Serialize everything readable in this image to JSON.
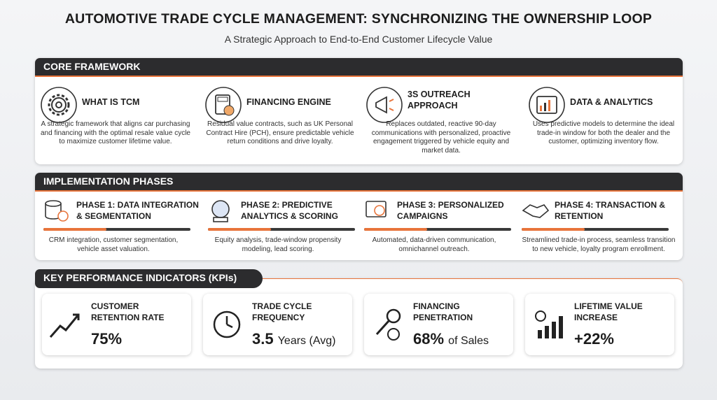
{
  "header": {
    "title": "AUTOMOTIVE TRADE CYCLE MANAGEMENT: SYNCHRONIZING THE OWNERSHIP LOOP",
    "subtitle": "A Strategic Approach to End-to-End Customer Lifecycle Value"
  },
  "core_framework": {
    "title": "CORE FRAMEWORK",
    "items": [
      {
        "title": "WHAT IS TCM",
        "text": "A strategic framework that aligns car purchasing and financing with the optimal resale value cycle to maximize customer lifetime value."
      },
      {
        "title": "FINANCING ENGINE",
        "text": "Residual value contracts, such as UK Personal Contract Hire (PCH), ensure predictable vehicle return conditions and drive loyalty."
      },
      {
        "title": "3S OUTREACH APPROACH",
        "text": "Replaces outdated, reactive 90-day communications with personalized, proactive engagement triggered by vehicle equity and market data."
      },
      {
        "title": "DATA & ANALYTICS",
        "text": "Uses predictive models to determine the ideal trade-in window for both the dealer and the customer, optimizing inventory flow."
      }
    ]
  },
  "implementation_phases": {
    "title": "IMPLEMENTATION PHASES",
    "phases": [
      {
        "title": "PHASE 1: DATA INTEGRATION & SEGMENTATION",
        "text": "CRM integration, customer segmentation, vehicle asset valuation."
      },
      {
        "title": "PHASE 2: PREDICTIVE ANALYTICS & SCORING",
        "text": "Equity analysis, trade-window propensity modeling, lead scoring."
      },
      {
        "title": "PHASE 3: PERSONALIZED CAMPAIGNS",
        "text": "Automated, data-driven communication, omnichannel outreach."
      },
      {
        "title": "PHASE 4: TRANSACTION & RETENTION",
        "text": "Streamlined trade-in process, seamless transition to new vehicle, loyalty program enrollment."
      }
    ]
  },
  "kpis": {
    "title": "KEY PERFORMANCE INDICATORS (KPIs)",
    "items": [
      {
        "label": "CUSTOMER RETENTION RATE",
        "value": "75%"
      },
      {
        "label": "TRADE CYCLE FREQUENCY",
        "value": "3.5",
        "unit": "Years (Avg)"
      },
      {
        "label": "FINANCING PENETRATION",
        "value": "68%",
        "unit": "of Sales"
      },
      {
        "label": "LIFETIME VALUE INCREASE",
        "value": "+22%"
      }
    ]
  }
}
